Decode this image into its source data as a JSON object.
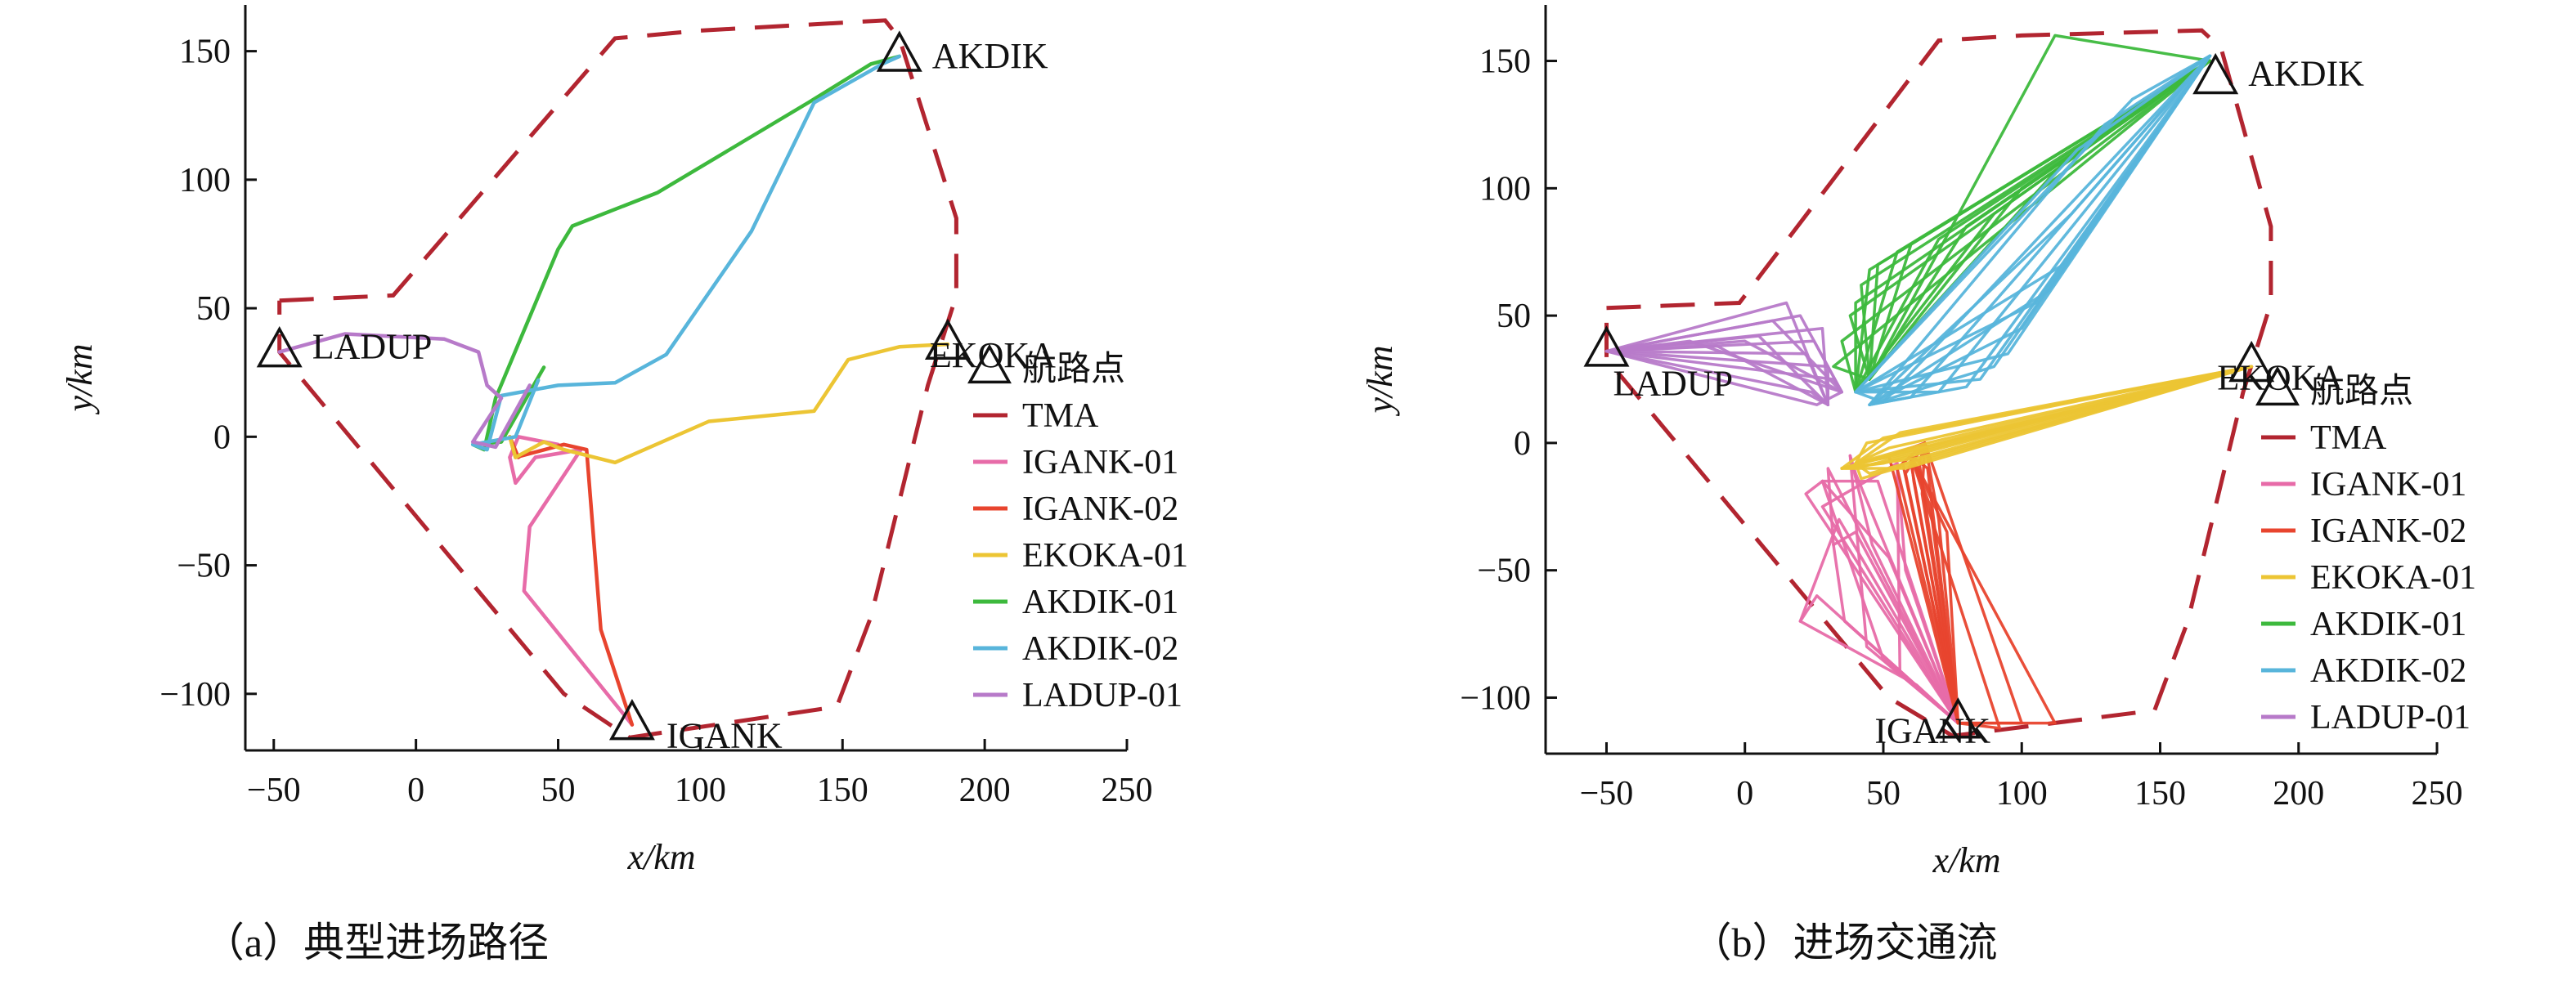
{
  "chart_data": [
    {
      "type": "line",
      "caption": "（a）典型进场路径",
      "xlabel": "x/km",
      "ylabel": "y/km",
      "xlim": [
        -60,
        250
      ],
      "ylim": [
        -122,
        168
      ],
      "xticks": [
        -50,
        0,
        50,
        100,
        150,
        200,
        250
      ],
      "xtick_labels": [
        "−50",
        "0",
        "50",
        "100",
        "150",
        "200",
        "250"
      ],
      "yticks": [
        -100,
        -50,
        0,
        50,
        100,
        150
      ],
      "ytick_labels": [
        "−100",
        "−50",
        "0",
        "50",
        "100",
        "150"
      ],
      "waypoints": [
        {
          "name": "AKDIK",
          "x": 170,
          "y": 148,
          "label_dx": 12,
          "label_dy": 0
        },
        {
          "name": "EKOKA",
          "x": 187,
          "y": 36,
          "label_dx": -50,
          "label_dy": 14
        },
        {
          "name": "LADUP",
          "x": -48,
          "y": 33,
          "label_dx": 12,
          "label_dy": -6
        },
        {
          "name": "IGANK",
          "x": 76,
          "y": -112,
          "label_dx": 14,
          "label_dy": 14
        }
      ],
      "tma": {
        "name": "TMA",
        "color": "#b22530",
        "points": [
          [
            -48,
            53
          ],
          [
            -8,
            55
          ],
          [
            70,
            155
          ],
          [
            100,
            158
          ],
          [
            165,
            162
          ],
          [
            170,
            155
          ],
          [
            190,
            85
          ],
          [
            190,
            55
          ],
          [
            180,
            20
          ],
          [
            160,
            -70
          ],
          [
            148,
            -105
          ],
          [
            75,
            -117
          ],
          [
            52,
            -100
          ],
          [
            -48,
            33
          ],
          [
            -48,
            53
          ]
        ]
      },
      "series": [
        {
          "name": "IGANK-01",
          "color": "#e76ba8",
          "points": [
            [
              76,
              -112
            ],
            [
              38,
              -60
            ],
            [
              40,
              -35
            ],
            [
              58,
              -5
            ],
            [
              42,
              -8
            ],
            [
              35,
              -18
            ],
            [
              33,
              -8
            ],
            [
              36,
              0
            ],
            [
              50,
              -3
            ]
          ]
        },
        {
          "name": "IGANK-02",
          "color": "#e8442e",
          "points": [
            [
              76,
              -112
            ],
            [
              65,
              -75
            ],
            [
              60,
              -5
            ],
            [
              52,
              -3
            ],
            [
              35,
              -8
            ],
            [
              33,
              0
            ],
            [
              36,
              -8
            ],
            [
              40,
              -5
            ]
          ]
        },
        {
          "name": "EKOKA-01",
          "color": "#ecc534",
          "points": [
            [
              187,
              36
            ],
            [
              170,
              35
            ],
            [
              152,
              30
            ],
            [
              140,
              10
            ],
            [
              103,
              6
            ],
            [
              70,
              -10
            ],
            [
              52,
              -5
            ],
            [
              45,
              -2
            ],
            [
              35,
              -8
            ],
            [
              33,
              0
            ]
          ]
        },
        {
          "name": "AKDIK-01",
          "color": "#3db93d",
          "points": [
            [
              170,
              148
            ],
            [
              160,
              145
            ],
            [
              138,
              130
            ],
            [
              85,
              95
            ],
            [
              55,
              82
            ],
            [
              50,
              73
            ],
            [
              28,
              15
            ],
            [
              24,
              -5
            ],
            [
              20,
              -3
            ],
            [
              30,
              -2
            ],
            [
              45,
              27
            ]
          ]
        },
        {
          "name": "AKDIK-02",
          "color": "#58b5db",
          "points": [
            [
              170,
              148
            ],
            [
              164,
              145
            ],
            [
              140,
              130
            ],
            [
              118,
              80
            ],
            [
              88,
              32
            ],
            [
              70,
              21
            ],
            [
              50,
              20
            ],
            [
              30,
              16
            ],
            [
              25,
              -5
            ],
            [
              20,
              -3
            ],
            [
              35,
              0
            ],
            [
              43,
              22
            ]
          ]
        },
        {
          "name": "LADUP-01",
          "color": "#b77ac9",
          "points": [
            [
              -48,
              33
            ],
            [
              -25,
              40
            ],
            [
              10,
              38
            ],
            [
              22,
              33
            ],
            [
              25,
              20
            ],
            [
              30,
              15
            ],
            [
              20,
              -2
            ],
            [
              28,
              -4
            ],
            [
              35,
              10
            ],
            [
              40,
              20
            ]
          ]
        }
      ],
      "legend": {
        "marker_label": "航路点",
        "position": "right"
      }
    },
    {
      "type": "line",
      "caption": "（b）进场交通流",
      "xlabel": "x/km",
      "ylabel": "y/km",
      "xlim": [
        -72,
        250
      ],
      "ylim": [
        -122,
        172
      ],
      "xticks": [
        -50,
        0,
        50,
        100,
        150,
        200,
        250
      ],
      "xtick_labels": [
        "−50",
        "0",
        "50",
        "100",
        "150",
        "200",
        "250"
      ],
      "yticks": [
        -100,
        -50,
        0,
        50,
        100,
        150
      ],
      "ytick_labels": [
        "−100",
        "−50",
        "0",
        "50",
        "100",
        "150"
      ],
      "waypoints": [
        {
          "name": "AKDIK",
          "x": 170,
          "y": 143,
          "label_dx": 12,
          "label_dy": -6
        },
        {
          "name": "EKOKA",
          "x": 183,
          "y": 30,
          "label_dx": -70,
          "label_dy": 14
        },
        {
          "name": "LADUP",
          "x": -50,
          "y": 36,
          "label_dx": -20,
          "label_dy": 40
        },
        {
          "name": "IGANK",
          "x": 77,
          "y": -110,
          "label_dx": -130,
          "label_dy": 10
        }
      ],
      "tma": {
        "name": "TMA",
        "color": "#b22530",
        "points": [
          [
            -50,
            53
          ],
          [
            -2,
            55
          ],
          [
            70,
            158
          ],
          [
            100,
            160
          ],
          [
            165,
            162
          ],
          [
            172,
            155
          ],
          [
            190,
            85
          ],
          [
            190,
            55
          ],
          [
            180,
            20
          ],
          [
            160,
            -70
          ],
          [
            148,
            -105
          ],
          [
            75,
            -115
          ],
          [
            52,
            -100
          ],
          [
            -50,
            33
          ],
          [
            -50,
            53
          ]
        ]
      },
      "flows": [
        {
          "name": "IGANK-01",
          "color": "#e76ba8",
          "origin": [
            77,
            -110
          ],
          "ends": [
            [
              28,
              -15
            ],
            [
              55,
              -8
            ],
            [
              20,
              -70
            ],
            [
              32,
              -40
            ],
            [
              38,
              -5
            ]
          ],
          "fan": [
            [
              22,
              -20
            ],
            [
              28,
              -25
            ],
            [
              34,
              -30
            ],
            [
              40,
              -35
            ],
            [
              46,
              -40
            ],
            [
              52,
              -45
            ],
            [
              58,
              -50
            ],
            [
              26,
              -60
            ],
            [
              36,
              -70
            ],
            [
              44,
              -80
            ],
            [
              50,
              -85
            ],
            [
              56,
              -90
            ],
            [
              62,
              -95
            ],
            [
              30,
              -10
            ],
            [
              40,
              -12
            ],
            [
              48,
              -15
            ]
          ]
        },
        {
          "name": "IGANK-02",
          "color": "#e8442e",
          "origin": [
            77,
            -110
          ],
          "ends": [
            [
              60,
              -5
            ],
            [
              65,
              0
            ]
          ],
          "fan": [
            [
              55,
              -10
            ],
            [
              58,
              -12
            ],
            [
              61,
              -15
            ],
            [
              64,
              -20
            ],
            [
              67,
              -25
            ],
            [
              70,
              -30
            ],
            [
              73,
              -35
            ],
            [
              57,
              -8
            ],
            [
              60,
              -8
            ],
            [
              63,
              -8
            ],
            [
              66,
              -10
            ],
            [
              52,
              -5
            ],
            [
              112,
              -110
            ],
            [
              100,
              -110
            ],
            [
              92,
              -112
            ]
          ]
        },
        {
          "name": "EKOKA-01",
          "color": "#ecc534",
          "origin": [
            183,
            30
          ],
          "ends": [
            [
              35,
              -10
            ],
            [
              40,
              -8
            ]
          ],
          "fan": [
            [
              40,
              -10
            ],
            [
              45,
              -12
            ],
            [
              50,
              -8
            ],
            [
              55,
              -5
            ],
            [
              60,
              -3
            ],
            [
              42,
              -14
            ],
            [
              48,
              -6
            ],
            [
              52,
              -2
            ],
            [
              58,
              -10
            ],
            [
              44,
              0
            ],
            [
              50,
              2
            ],
            [
              56,
              4
            ],
            [
              62,
              -6
            ],
            [
              66,
              0
            ]
          ]
        },
        {
          "name": "AKDIK-01",
          "color": "#3db93d",
          "origin": [
            168,
            150
          ],
          "ends": [
            [
              45,
              25
            ],
            [
              40,
              20
            ]
          ],
          "fan": [
            [
              112,
              160
            ],
            [
              115,
              110
            ],
            [
              100,
              100
            ],
            [
              90,
              90
            ],
            [
              80,
              85
            ],
            [
              70,
              80
            ],
            [
              60,
              78
            ],
            [
              55,
              75
            ],
            [
              48,
              70
            ],
            [
              45,
              68
            ],
            [
              42,
              62
            ],
            [
              40,
              55
            ],
            [
              38,
              50
            ],
            [
              35,
              40
            ],
            [
              32,
              30
            ]
          ]
        },
        {
          "name": "AKDIK-02",
          "color": "#58b5db",
          "origin": [
            168,
            152
          ],
          "ends": [
            [
              40,
              20
            ],
            [
              45,
              15
            ]
          ],
          "fan": [
            [
              140,
              135
            ],
            [
              130,
              125
            ],
            [
              120,
              115
            ],
            [
              118,
              90
            ],
            [
              115,
              70
            ],
            [
              110,
              60
            ],
            [
              105,
              55
            ],
            [
              100,
              45
            ],
            [
              95,
              35
            ],
            [
              90,
              30
            ],
            [
              85,
              25
            ],
            [
              80,
              22
            ],
            [
              70,
              20
            ],
            [
              60,
              18
            ],
            [
              50,
              16
            ]
          ]
        },
        {
          "name": "LADUP-01",
          "color": "#b77ac9",
          "origin": [
            -50,
            36
          ],
          "ends": [
            [
              30,
              15
            ],
            [
              35,
              20
            ]
          ],
          "fan": [
            [
              22,
              35
            ],
            [
              25,
              40
            ],
            [
              28,
              45
            ],
            [
              20,
              50
            ],
            [
              15,
              55
            ],
            [
              10,
              48
            ],
            [
              5,
              42
            ],
            [
              0,
              40
            ],
            [
              -10,
              38
            ],
            [
              -20,
              40
            ],
            [
              30,
              30
            ],
            [
              32,
              25
            ],
            [
              24,
              20
            ],
            [
              26,
              15
            ]
          ]
        }
      ],
      "legend": {
        "marker_label": "航路点",
        "position": "right"
      }
    }
  ]
}
